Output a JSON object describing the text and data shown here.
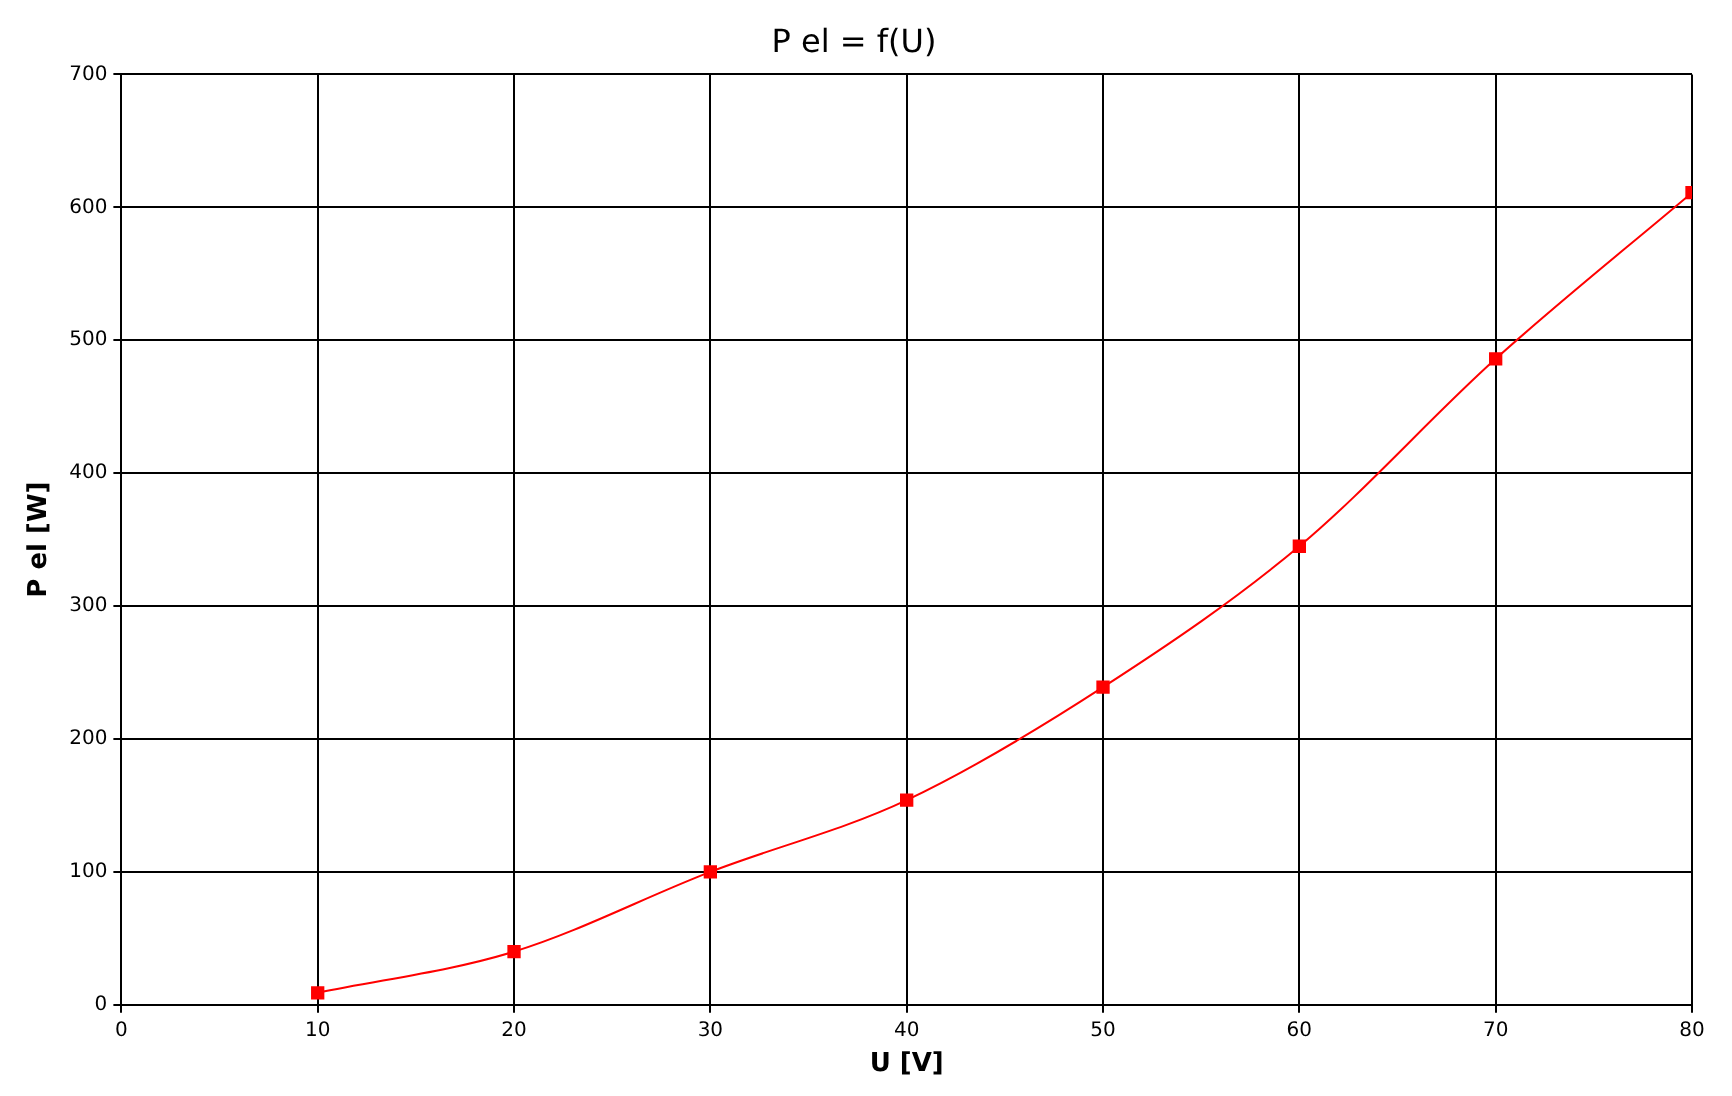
{
  "chart_data": {
    "type": "line",
    "title": "P el = f(U)",
    "xlabel": "U [V]",
    "ylabel": "P el [W]",
    "x": [
      10,
      20,
      30,
      40,
      50,
      60,
      70,
      80
    ],
    "series": [
      {
        "color": "#ff0000",
        "values": [
          9,
          40,
          100,
          154,
          239,
          345,
          486,
          611
        ]
      }
    ],
    "xlim": [
      0,
      80
    ],
    "xticks": [
      0,
      10,
      20,
      30,
      40,
      50,
      60,
      70,
      80
    ],
    "ylim": [
      0,
      700
    ],
    "yticks": [
      0,
      100,
      200,
      300,
      400,
      500,
      600,
      700
    ],
    "grid": true,
    "legend": false,
    "marker": "square",
    "line_style": "solid"
  }
}
